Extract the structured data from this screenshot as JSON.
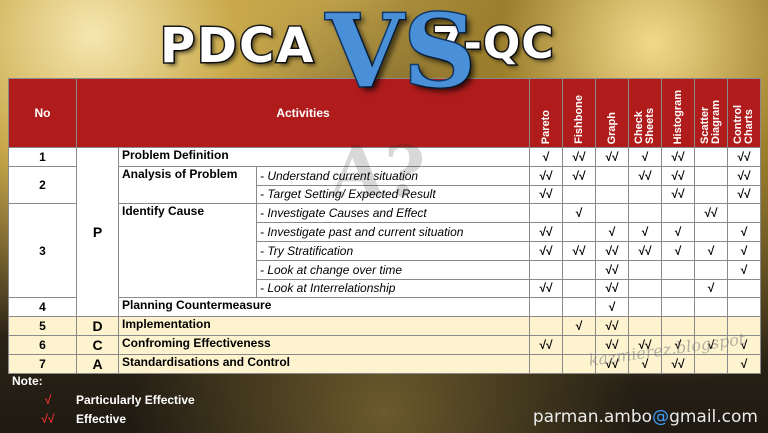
{
  "header": {
    "pdca": "PDCA",
    "vs": "VS",
    "qc": "7-QC"
  },
  "table": {
    "col_no": "No",
    "col_activities": "Activities",
    "tools": [
      "Pareto",
      "Fishbone",
      "Graph",
      "Check Sheets",
      "Histogram",
      "Scatter Diagram",
      "Control Charts"
    ],
    "rows": [
      {
        "no": "1",
        "phase": "P",
        "activity": "Problem Definition",
        "sub": "",
        "marks": [
          "√",
          "√√",
          "√√",
          "√",
          "√√",
          "",
          "√√"
        ]
      },
      {
        "no": "2",
        "phase": "",
        "activity": "Analysis of Problem",
        "sub": "- Understand current situation",
        "marks": [
          "√√",
          "√√",
          "",
          "√√",
          "√√",
          "",
          "√√"
        ]
      },
      {
        "no": "",
        "phase": "",
        "activity": "",
        "sub": "- Target Setting/ Expected Result",
        "marks": [
          "√√",
          "",
          "",
          "",
          "√√",
          "",
          "√√"
        ]
      },
      {
        "no": "3",
        "phase": "",
        "activity": "Identify Cause",
        "sub": "- Investigate Causes and Effect",
        "marks": [
          "",
          "√",
          "",
          "",
          "",
          "√√",
          ""
        ]
      },
      {
        "no": "",
        "phase": "",
        "activity": "",
        "sub": "- Investigate past and current situation",
        "marks": [
          "√√",
          "",
          "√",
          "√",
          "√",
          "",
          "√"
        ]
      },
      {
        "no": "",
        "phase": "",
        "activity": "",
        "sub": "- Try Stratification",
        "marks": [
          "√√",
          "√√",
          "√√",
          "√√",
          "√",
          "√",
          "√"
        ]
      },
      {
        "no": "",
        "phase": "",
        "activity": "",
        "sub": "- Look at change over time",
        "marks": [
          "",
          "",
          "√√",
          "",
          "",
          "",
          "√"
        ]
      },
      {
        "no": "",
        "phase": "",
        "activity": "",
        "sub": "- Look at Interrelationship",
        "marks": [
          "√√",
          "",
          "√√",
          "",
          "",
          "√",
          ""
        ]
      },
      {
        "no": "4",
        "phase": "",
        "activity": "Planning Countermeasure",
        "sub": "",
        "marks": [
          "",
          "",
          "√",
          "",
          "",
          "",
          ""
        ]
      },
      {
        "no": "5",
        "phase": "D",
        "activity": "Implementation",
        "sub": "",
        "marks": [
          "",
          "√",
          "√√",
          "",
          "",
          "",
          ""
        ]
      },
      {
        "no": "6",
        "phase": "C",
        "activity": "Confroming Effectiveness",
        "sub": "",
        "marks": [
          "√√",
          "",
          "√√",
          "√√",
          "√",
          "√",
          "√"
        ]
      },
      {
        "no": "7",
        "phase": "A",
        "activity": "Standardisations and Control",
        "sub": "",
        "marks": [
          "",
          "",
          "√√",
          "√",
          "√√",
          "",
          "√"
        ]
      }
    ]
  },
  "note": {
    "label": "Note:",
    "items": [
      {
        "symbol": "√",
        "text": "Particularly Effective"
      },
      {
        "symbol": "√√",
        "text": "Effective"
      }
    ]
  },
  "email": {
    "user": "parman.ambo",
    "at": "@",
    "domain": "gmail.com"
  },
  "watermark": "kazmierez.blogspot",
  "colors": {
    "header_red": "#b01c1c",
    "phase_red": "#c81818",
    "mark_blue": "#1a3ea8",
    "yellow_row": "#fdf3cf"
  }
}
